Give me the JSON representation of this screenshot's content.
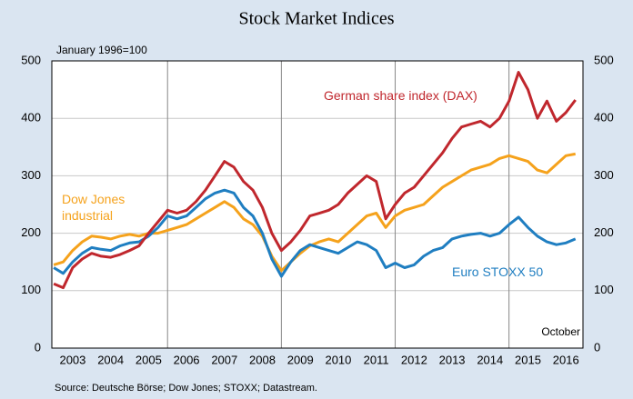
{
  "chart_data": {
    "type": "line",
    "title": "Stock Market Indices",
    "subtitle": "January 1996=100",
    "source": "Source: Deutsche Börse; Dow Jones; STOXX; Datastream.",
    "annotations": [
      "October"
    ],
    "x": [
      2003.0,
      2003.25,
      2003.5,
      2003.75,
      2004.0,
      2004.25,
      2004.5,
      2004.75,
      2005.0,
      2005.25,
      2005.5,
      2005.75,
      2006.0,
      2006.25,
      2006.5,
      2006.75,
      2007.0,
      2007.25,
      2007.5,
      2007.75,
      2008.0,
      2008.25,
      2008.5,
      2008.75,
      2009.0,
      2009.25,
      2009.5,
      2009.75,
      2010.0,
      2010.25,
      2010.5,
      2010.75,
      2011.0,
      2011.25,
      2011.5,
      2011.75,
      2012.0,
      2012.25,
      2012.5,
      2012.75,
      2013.0,
      2013.25,
      2013.5,
      2013.75,
      2014.0,
      2014.25,
      2014.5,
      2014.75,
      2015.0,
      2015.25,
      2015.5,
      2015.75,
      2016.0,
      2016.25,
      2016.5,
      2016.75
    ],
    "series": [
      {
        "name": "German share index (DAX)",
        "color": "#c0272d",
        "values": [
          112,
          105,
          140,
          155,
          165,
          160,
          158,
          163,
          170,
          178,
          200,
          220,
          240,
          235,
          240,
          255,
          275,
          300,
          325,
          315,
          290,
          275,
          245,
          200,
          170,
          185,
          205,
          230,
          235,
          240,
          250,
          270,
          285,
          300,
          290,
          225,
          250,
          270,
          280,
          300,
          320,
          340,
          365,
          385,
          390,
          395,
          385,
          400,
          430,
          480,
          450,
          400,
          430,
          395,
          410,
          432
        ]
      },
      {
        "name": "Dow Jones industrial",
        "color": "#f5a21c",
        "values": [
          145,
          150,
          170,
          185,
          195,
          193,
          190,
          195,
          198,
          195,
          200,
          200,
          205,
          210,
          215,
          225,
          235,
          245,
          255,
          245,
          225,
          215,
          195,
          160,
          135,
          150,
          165,
          178,
          185,
          190,
          185,
          200,
          215,
          230,
          235,
          210,
          230,
          240,
          245,
          250,
          265,
          280,
          290,
          300,
          310,
          315,
          320,
          330,
          335,
          330,
          325,
          310,
          305,
          320,
          335,
          338
        ]
      },
      {
        "name": "Euro STOXX 50",
        "color": "#1f7ec1",
        "values": [
          140,
          130,
          150,
          165,
          175,
          172,
          170,
          178,
          183,
          185,
          195,
          210,
          230,
          225,
          230,
          245,
          260,
          270,
          275,
          270,
          245,
          230,
          200,
          155,
          125,
          150,
          170,
          180,
          175,
          170,
          165,
          175,
          185,
          180,
          170,
          140,
          148,
          140,
          145,
          160,
          170,
          175,
          190,
          195,
          198,
          200,
          195,
          200,
          215,
          228,
          210,
          195,
          185,
          180,
          183,
          190
        ]
      }
    ],
    "xlim": [
      2002.95,
      2016.95
    ],
    "xticks": [
      {
        "value": 2003.5,
        "label": "2003"
      },
      {
        "value": 2004.5,
        "label": "2004"
      },
      {
        "value": 2005.5,
        "label": "2005"
      },
      {
        "value": 2006.5,
        "label": "2006"
      },
      {
        "value": 2007.5,
        "label": "2007"
      },
      {
        "value": 2008.5,
        "label": "2008"
      },
      {
        "value": 2009.5,
        "label": "2009"
      },
      {
        "value": 2010.5,
        "label": "2010"
      },
      {
        "value": 2011.5,
        "label": "2011"
      },
      {
        "value": 2012.5,
        "label": "2012"
      },
      {
        "value": 2013.5,
        "label": "2013"
      },
      {
        "value": 2014.5,
        "label": "2014"
      },
      {
        "value": 2015.5,
        "label": "2015"
      },
      {
        "value": 2016.5,
        "label": "2016"
      }
    ],
    "xgrid": [
      2006,
      2009,
      2012,
      2015
    ],
    "ylim": [
      0,
      500
    ],
    "yticks": [
      0,
      100,
      200,
      300,
      400,
      500
    ],
    "y2lim": [
      0,
      500
    ],
    "y2ticks": [
      0,
      100,
      200,
      300,
      400,
      500
    ],
    "grid": true
  }
}
